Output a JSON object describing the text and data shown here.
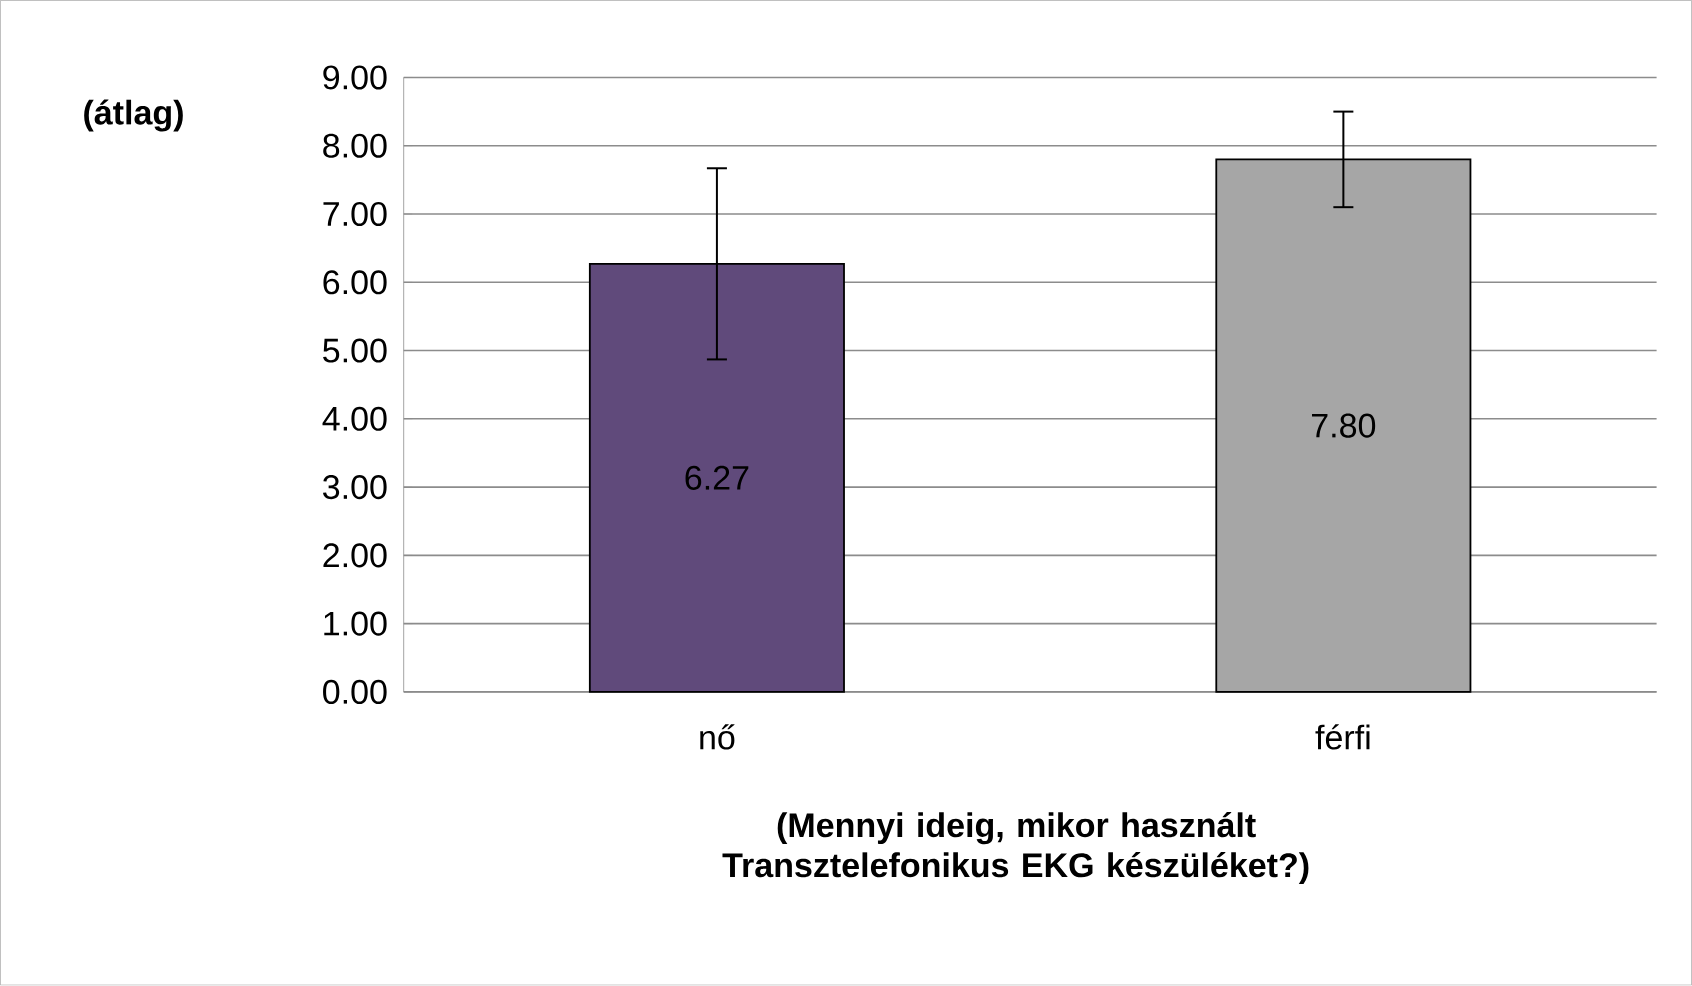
{
  "chart_data": {
    "type": "bar",
    "ylabel": "(átlag)",
    "xlabel": "(Mennyi ideig, mikor használt Transztelefonikus EKG készüléket?)",
    "categories": [
      "nő",
      "férfi"
    ],
    "values": [
      6.27,
      7.8
    ],
    "colors": [
      "#604a7b",
      "#a6a6a6"
    ],
    "errors": [
      1.4,
      0.7
    ],
    "value_labels": [
      "6.27",
      "7.80"
    ],
    "ylim": [
      0,
      9
    ],
    "yticks": [
      {
        "value": 0,
        "label": "0.00"
      },
      {
        "value": 1,
        "label": "1.00"
      },
      {
        "value": 2,
        "label": "2.00"
      },
      {
        "value": 3,
        "label": "3.00"
      },
      {
        "value": 4,
        "label": "4.00"
      },
      {
        "value": 5,
        "label": "5.00"
      },
      {
        "value": 6,
        "label": "6.00"
      },
      {
        "value": 7,
        "label": "7.00"
      },
      {
        "value": 8,
        "label": "8.00"
      },
      {
        "value": 9,
        "label": "9.00"
      }
    ],
    "grid": "y"
  }
}
